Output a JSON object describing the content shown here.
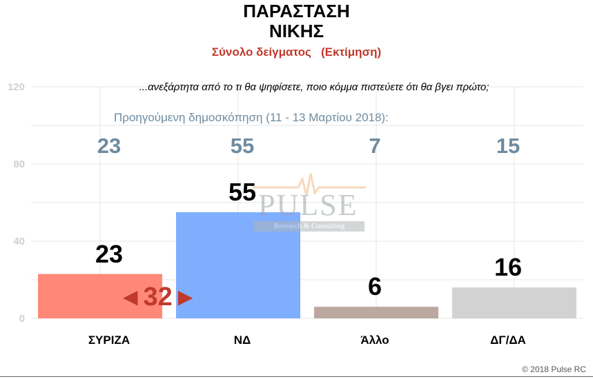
{
  "chart_data": {
    "type": "bar",
    "title_line1": "ΠΑΡΑΣΤΑΣΗ",
    "title_line2": "ΝΙΚΗΣ",
    "subtitle": "Σύνολο δείγματος   (Εκτίμηση)",
    "question": "...ανεξάρτητα από το τι θα ψηφίσετε, ποιο κόμμα πιστεύετε ότι θα βγει πρώτο;",
    "previous_caption": "Προηγούμενη δημοσκόπηση (11 - 13 Μαρτίου 2018):",
    "categories": [
      "ΣΥΡΙΖΑ",
      "ΝΔ",
      "Άλλο",
      "ΔΓ/ΔΑ"
    ],
    "values": [
      23,
      55,
      6,
      16
    ],
    "value_labels": [
      "23",
      "55",
      "6",
      "16"
    ],
    "previous_values": [
      "23",
      "55",
      "7",
      "15"
    ],
    "bar_colors": [
      "#ff8878",
      "#80aeff",
      "#bca8a0",
      "#d2d2d2"
    ],
    "ylim": [
      0,
      120
    ],
    "yticks": [
      "0",
      "40",
      "80",
      "120"
    ],
    "grid": true,
    "gap_annotation": {
      "value": "32",
      "left_arrow": "◀",
      "right_arrow": "▶",
      "color": "#c0392b"
    },
    "xlabel": "",
    "ylabel": ""
  },
  "watermark": {
    "brand": "PULSE",
    "tagline": "Research & Consulting"
  },
  "footer": {
    "copyright": "© 2018 Pulse RC"
  }
}
